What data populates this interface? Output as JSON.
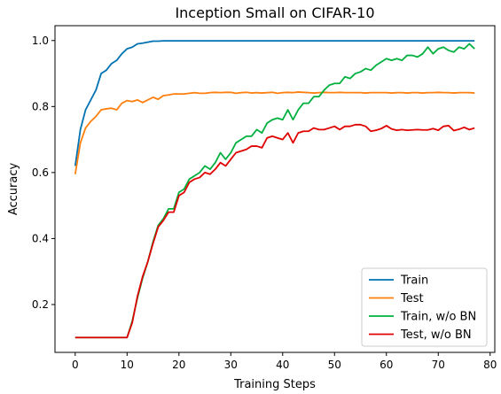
{
  "chart_data": {
    "type": "line",
    "title": "Inception Small on CIFAR-10",
    "xlabel": "Training Steps",
    "ylabel": "Accuracy",
    "xlim": [
      -3.9,
      80.9
    ],
    "ylim": [
      0.055,
      1.045
    ],
    "xticks": [
      0,
      10,
      20,
      30,
      40,
      50,
      60,
      70,
      80
    ],
    "yticks": [
      0.2,
      0.4,
      0.6,
      0.8,
      1.0
    ],
    "ytick_labels": [
      "0.2",
      "0.4",
      "0.6",
      "0.8",
      "1.0"
    ],
    "legend_position": "lower-right",
    "grid": false,
    "x": [
      0,
      1,
      2,
      3,
      4,
      5,
      6,
      7,
      8,
      9,
      10,
      11,
      12,
      13,
      14,
      15,
      16,
      17,
      18,
      19,
      20,
      21,
      22,
      23,
      24,
      25,
      26,
      27,
      28,
      29,
      30,
      31,
      32,
      33,
      34,
      35,
      36,
      37,
      38,
      39,
      40,
      41,
      42,
      43,
      44,
      45,
      46,
      47,
      48,
      49,
      50,
      51,
      52,
      53,
      54,
      55,
      56,
      57,
      58,
      59,
      60,
      61,
      62,
      63,
      64,
      65,
      66,
      67,
      68,
      69,
      70,
      71,
      72,
      73,
      74,
      75,
      76,
      77
    ],
    "series": [
      {
        "name": "Train",
        "color": "#0072b2",
        "values": [
          0.62,
          0.73,
          0.79,
          0.82,
          0.85,
          0.9,
          0.91,
          0.93,
          0.94,
          0.96,
          0.975,
          0.98,
          0.99,
          0.992,
          0.995,
          0.998,
          0.998,
          0.999,
          0.999,
          0.999,
          0.999,
          0.999,
          0.999,
          0.999,
          0.999,
          0.999,
          0.999,
          0.999,
          0.999,
          0.999,
          0.999,
          0.999,
          0.999,
          0.999,
          0.999,
          0.999,
          0.999,
          0.999,
          0.999,
          0.999,
          0.999,
          0.999,
          0.999,
          0.999,
          0.999,
          0.999,
          0.999,
          0.999,
          0.999,
          0.999,
          0.999,
          0.999,
          0.999,
          0.999,
          0.999,
          0.999,
          0.999,
          0.999,
          0.999,
          0.999,
          0.999,
          0.999,
          0.999,
          0.999,
          0.999,
          0.999,
          0.999,
          0.999,
          0.999,
          0.999,
          0.999,
          0.999,
          0.999,
          0.999,
          0.999,
          0.999,
          0.999,
          0.999
        ]
      },
      {
        "name": "Test",
        "color": "#ff7f0e",
        "values": [
          0.595,
          0.69,
          0.735,
          0.755,
          0.77,
          0.79,
          0.793,
          0.795,
          0.79,
          0.81,
          0.818,
          0.815,
          0.82,
          0.812,
          0.82,
          0.828,
          0.822,
          0.833,
          0.835,
          0.838,
          0.838,
          0.838,
          0.84,
          0.842,
          0.84,
          0.84,
          0.842,
          0.843,
          0.842,
          0.843,
          0.843,
          0.84,
          0.842,
          0.843,
          0.841,
          0.842,
          0.841,
          0.842,
          0.843,
          0.84,
          0.842,
          0.843,
          0.842,
          0.844,
          0.843,
          0.842,
          0.841,
          0.842,
          0.843,
          0.842,
          0.842,
          0.843,
          0.842,
          0.842,
          0.842,
          0.842,
          0.841,
          0.842,
          0.842,
          0.842,
          0.842,
          0.841,
          0.842,
          0.842,
          0.841,
          0.842,
          0.842,
          0.841,
          0.842,
          0.842,
          0.843,
          0.842,
          0.842,
          0.841,
          0.842,
          0.842,
          0.842,
          0.841
        ]
      },
      {
        "name": "Train, w/o BN",
        "color": "#00b03f",
        "values": [
          0.1,
          0.1,
          0.1,
          0.1,
          0.1,
          0.1,
          0.1,
          0.1,
          0.1,
          0.1,
          0.1,
          0.15,
          0.22,
          0.28,
          0.33,
          0.39,
          0.44,
          0.46,
          0.49,
          0.49,
          0.54,
          0.55,
          0.58,
          0.59,
          0.6,
          0.62,
          0.61,
          0.63,
          0.66,
          0.64,
          0.66,
          0.69,
          0.7,
          0.71,
          0.71,
          0.73,
          0.72,
          0.75,
          0.76,
          0.765,
          0.76,
          0.79,
          0.76,
          0.79,
          0.81,
          0.81,
          0.83,
          0.83,
          0.85,
          0.865,
          0.87,
          0.87,
          0.89,
          0.885,
          0.9,
          0.905,
          0.915,
          0.91,
          0.925,
          0.935,
          0.945,
          0.94,
          0.945,
          0.94,
          0.955,
          0.955,
          0.95,
          0.96,
          0.98,
          0.96,
          0.975,
          0.98,
          0.97,
          0.965,
          0.98,
          0.975,
          0.99,
          0.975
        ]
      },
      {
        "name": "Test, w/o BN",
        "color": "#e00000",
        "values": [
          0.1,
          0.1,
          0.1,
          0.1,
          0.1,
          0.1,
          0.1,
          0.1,
          0.1,
          0.1,
          0.1,
          0.145,
          0.225,
          0.285,
          0.33,
          0.385,
          0.435,
          0.455,
          0.48,
          0.48,
          0.53,
          0.54,
          0.57,
          0.58,
          0.585,
          0.6,
          0.595,
          0.61,
          0.63,
          0.62,
          0.64,
          0.66,
          0.665,
          0.67,
          0.68,
          0.68,
          0.675,
          0.705,
          0.71,
          0.705,
          0.7,
          0.72,
          0.69,
          0.72,
          0.725,
          0.725,
          0.735,
          0.73,
          0.73,
          0.735,
          0.74,
          0.73,
          0.74,
          0.74,
          0.745,
          0.745,
          0.74,
          0.725,
          0.728,
          0.733,
          0.742,
          0.732,
          0.728,
          0.73,
          0.728,
          0.729,
          0.73,
          0.729,
          0.729,
          0.733,
          0.728,
          0.74,
          0.742,
          0.727,
          0.731,
          0.737,
          0.73,
          0.735
        ]
      }
    ]
  }
}
